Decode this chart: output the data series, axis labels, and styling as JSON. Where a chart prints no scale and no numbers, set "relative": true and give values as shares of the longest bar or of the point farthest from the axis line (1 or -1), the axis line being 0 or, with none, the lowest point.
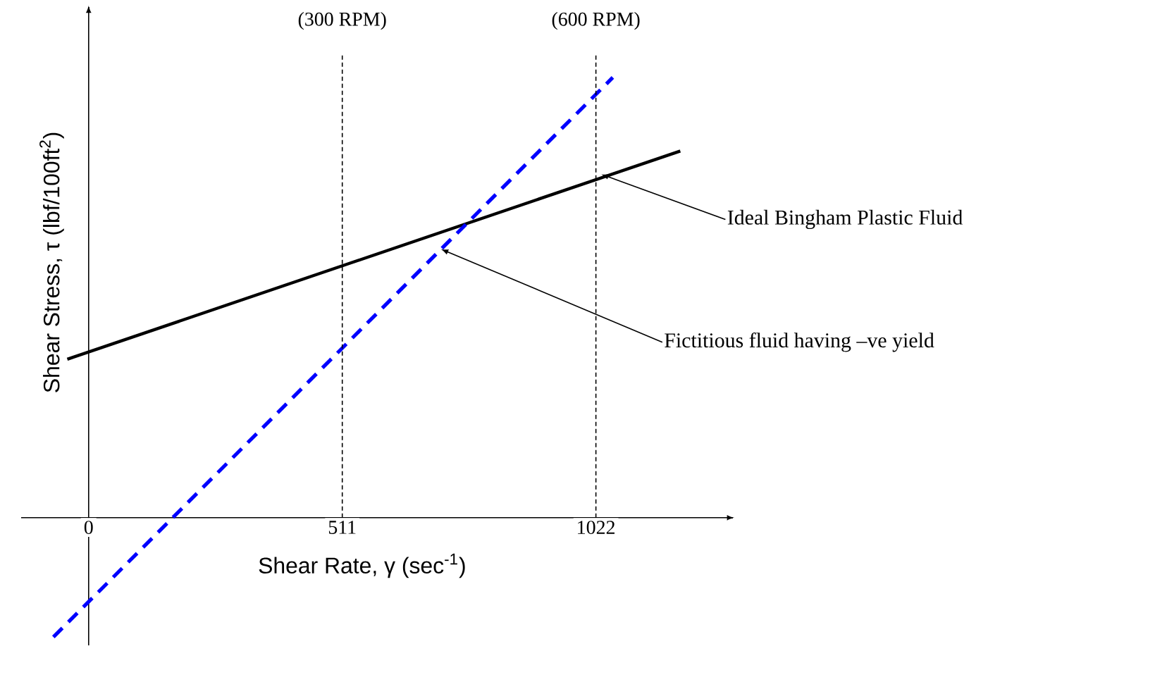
{
  "chart_data": {
    "type": "line",
    "relative": true,
    "xlabel": "Shear Rate, γ (sec$^{-1}$)",
    "ylabel": "Shear Stress, τ (lbf/100ft$^{2}$)",
    "xlim": [
      -136,
      1298
    ],
    "xticks": [
      0,
      511,
      1022
    ],
    "series": [
      {
        "color": "#000000",
        "line_style": "solid",
        "x": [
          -43,
          1192
        ],
        "values": [
          0.36,
          0.833
        ]
      },
      {
        "color": "#0000ff",
        "line_style": "dashed",
        "x": [
          -71,
          1056
        ],
        "values": [
          -0.271,
          1.0
        ]
      }
    ],
    "ref_lines": [
      {
        "axis": "x",
        "value": 511,
        "label": "(300 RPM)",
        "line_style": "dashed",
        "color": "#000000"
      },
      {
        "axis": "x",
        "value": 1022,
        "label": "(600 RPM)",
        "line_style": "dashed",
        "color": "#000000"
      }
    ],
    "annotations": [
      {
        "text": "Ideal Bingham Plastic Fluid",
        "x": 1033,
        "y": 0.78
      },
      {
        "text": "Fictitious fluid having –ve yield",
        "x": 710,
        "y": 0.61
      }
    ],
    "marker": "none"
  }
}
